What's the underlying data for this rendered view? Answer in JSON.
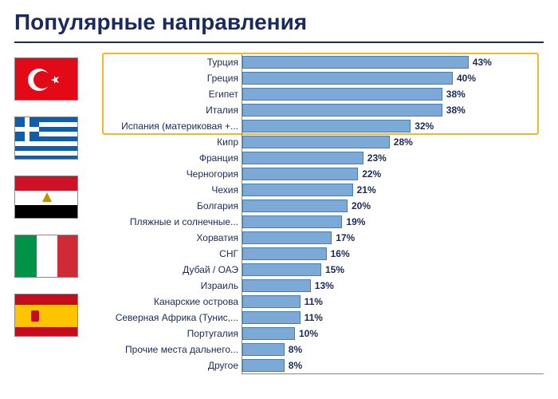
{
  "title": "Популярные направления",
  "flags": [
    {
      "name": "turkey",
      "id": "flag-turkey"
    },
    {
      "name": "greece",
      "id": "flag-greece"
    },
    {
      "name": "egypt",
      "id": "flag-egypt"
    },
    {
      "name": "italy",
      "id": "flag-italy"
    },
    {
      "name": "spain",
      "id": "flag-spain"
    }
  ],
  "chart": {
    "type": "bar-horizontal",
    "bar_fill": "#7da9d6",
    "bar_border": "#4a7cb5",
    "label_fontsize": 12,
    "value_fontsize": 12,
    "value_color": "#1a2a5c",
    "label_color": "#1a2a5c",
    "axis_color": "#888888",
    "max_value": 50,
    "highlight": {
      "border_color": "#f0b830",
      "from_index": 0,
      "to_index": 4
    },
    "rows": [
      {
        "label": "Турция",
        "value": 43,
        "display": "43%"
      },
      {
        "label": "Греция",
        "value": 40,
        "display": "40%"
      },
      {
        "label": "Египет",
        "value": 38,
        "display": "38%"
      },
      {
        "label": "Италия",
        "value": 38,
        "display": "38%"
      },
      {
        "label": "Испания (материковая +...",
        "value": 32,
        "display": "32%"
      },
      {
        "label": "Кипр",
        "value": 28,
        "display": "28%"
      },
      {
        "label": "Франция",
        "value": 23,
        "display": "23%"
      },
      {
        "label": "Черногория",
        "value": 22,
        "display": "22%"
      },
      {
        "label": "Чехия",
        "value": 21,
        "display": "21%"
      },
      {
        "label": "Болгария",
        "value": 20,
        "display": "20%"
      },
      {
        "label": "Пляжные и солнечные...",
        "value": 19,
        "display": "19%"
      },
      {
        "label": "Хорватия",
        "value": 17,
        "display": "17%"
      },
      {
        "label": "СНГ",
        "value": 16,
        "display": "16%"
      },
      {
        "label": "Дубай / ОАЭ",
        "value": 15,
        "display": "15%"
      },
      {
        "label": "Израиль",
        "value": 13,
        "display": "13%"
      },
      {
        "label": "Канарские острова",
        "value": 11,
        "display": "11%"
      },
      {
        "label": "Северная Африка (Тунис,...",
        "value": 11,
        "display": "11%"
      },
      {
        "label": "Португалия",
        "value": 10,
        "display": "10%"
      },
      {
        "label": "Прочие места дальнего...",
        "value": 8,
        "display": "8%"
      },
      {
        "label": "Другое",
        "value": 8,
        "display": "8%"
      }
    ]
  }
}
